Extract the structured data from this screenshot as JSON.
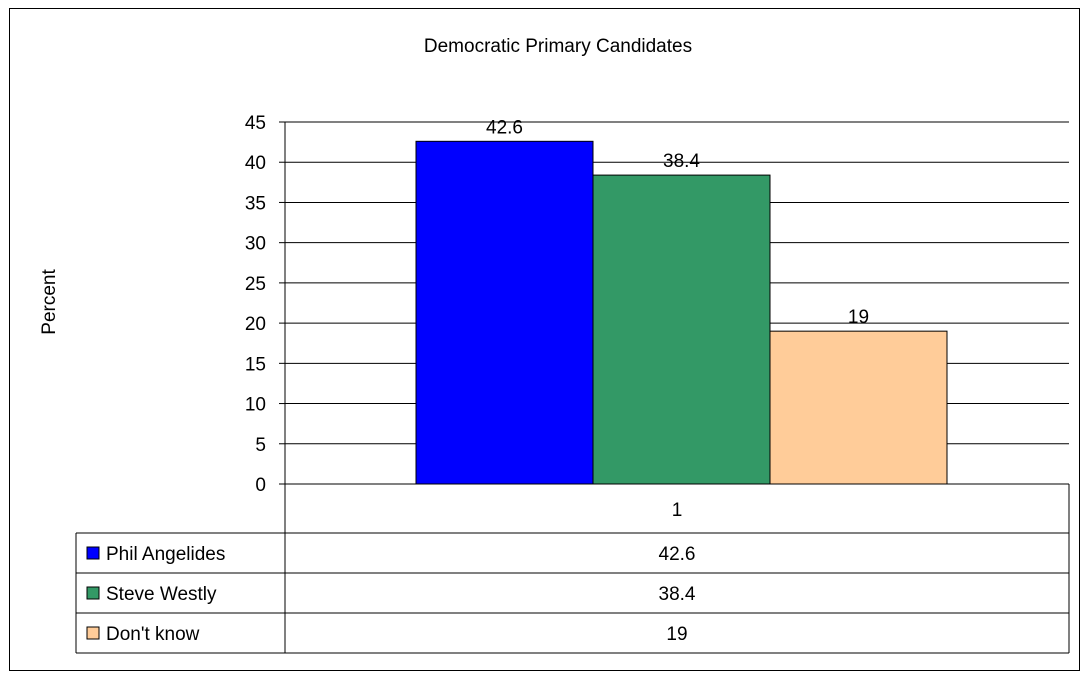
{
  "chart_data": {
    "type": "bar",
    "title": "Democratic Primary Candidates",
    "ylabel": "Percent",
    "xlabel": "",
    "categories": [
      "1"
    ],
    "ylim": [
      0,
      45
    ],
    "yticks": [
      "0",
      "5",
      "10",
      "15",
      "20",
      "25",
      "30",
      "35",
      "40",
      "45"
    ],
    "grid": true,
    "legend": "data-table-below",
    "series": [
      {
        "name": "Phil Angelides",
        "values": [
          42.6
        ],
        "label": "42.6",
        "color": "#0000ff"
      },
      {
        "name": "Steve Westly",
        "values": [
          38.4
        ],
        "label": "38.4",
        "color": "#339966"
      },
      {
        "name": "Don't know",
        "values": [
          19
        ],
        "label": "19",
        "color": "#ffcc99"
      }
    ]
  }
}
